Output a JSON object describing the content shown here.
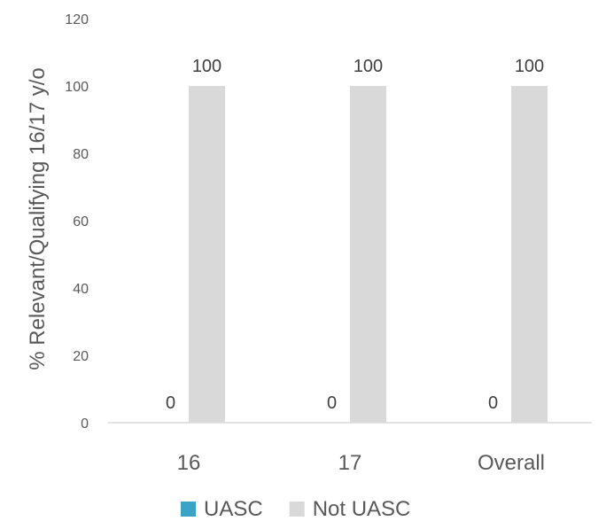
{
  "chart_data": {
    "type": "bar",
    "categories": [
      "16",
      "17",
      "Overall"
    ],
    "series": [
      {
        "name": "UASC",
        "values": [
          0,
          0,
          0
        ],
        "color": "#3BA3C4"
      },
      {
        "name": "Not UASC",
        "values": [
          100,
          100,
          100
        ],
        "color": "#D9D9D9"
      }
    ],
    "ylabel": "% Relevant/Qualifying 16/17 y/o",
    "xlabel": "",
    "ylim": [
      0,
      120
    ],
    "yticks": [
      0,
      20,
      40,
      60,
      80,
      100,
      120
    ],
    "grid": false,
    "legend": "bottom"
  }
}
